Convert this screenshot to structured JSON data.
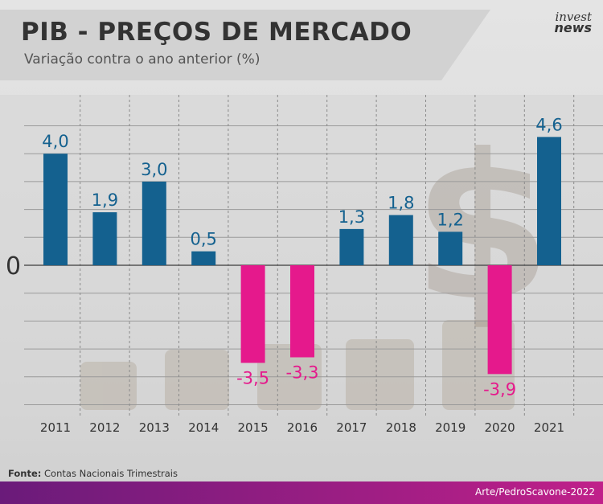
{
  "header": {
    "title": "PIB - PREÇOS DE MERCADO",
    "subtitle": "Variação contra o ano anterior (%)"
  },
  "logo": {
    "line1": "invest",
    "line2": "news"
  },
  "colors": {
    "positive": "#14618f",
    "negative": "#e5198c",
    "footer_start": "#6a1b7a",
    "footer_end": "#c0208a",
    "text": "#333333"
  },
  "chart_data": {
    "type": "bar",
    "title": "PIB - PREÇOS DE MERCADO",
    "subtitle": "Variação contra o ano anterior (%)",
    "categories": [
      "2011",
      "2012",
      "2013",
      "2014",
      "2015",
      "2016",
      "2017",
      "2018",
      "2019",
      "2020",
      "2021"
    ],
    "values": [
      4.0,
      1.9,
      3.0,
      0.5,
      -3.5,
      -3.3,
      1.3,
      1.8,
      1.2,
      -3.9,
      4.6
    ],
    "value_labels": [
      "4,0",
      "1,9",
      "3,0",
      "0,5",
      "-3,5",
      "-3,3",
      "1,3",
      "1,8",
      "1,2",
      "-3,9",
      "4,6"
    ],
    "zero_label": "0",
    "ylim": [
      -5.3,
      5.3
    ],
    "grid": true,
    "background_icon": "dollar-sign-icon"
  },
  "source": {
    "label": "Fonte:",
    "text": "Contas Nacionais Trimestrais"
  },
  "footer": {
    "credit": "Arte/PedroScavone-2022"
  }
}
